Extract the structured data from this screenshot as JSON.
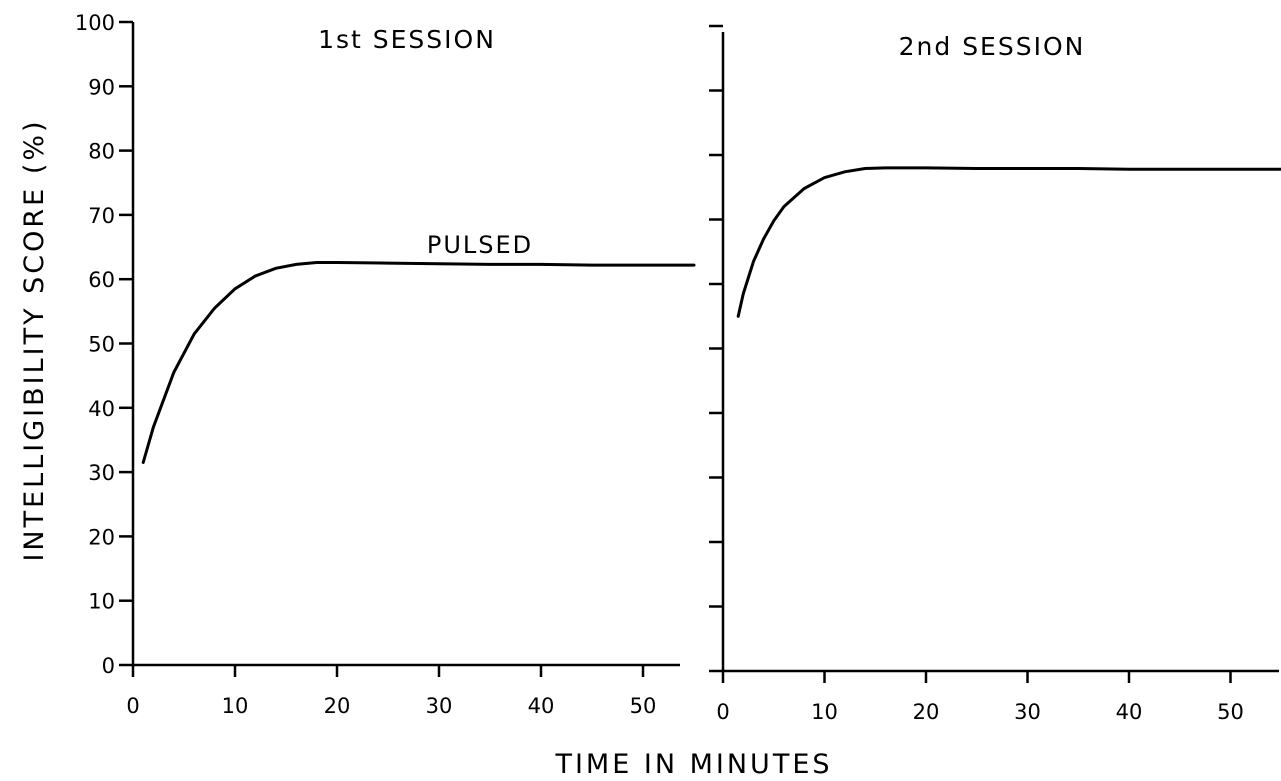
{
  "chart_data": {
    "type": "line",
    "ylabel": "INTELLIGIBILITY SCORE (%)",
    "xlabel": "TIME IN MINUTES",
    "ylim": [
      0,
      100
    ],
    "yticks": [
      "0",
      "10",
      "20",
      "30",
      "40",
      "50",
      "60",
      "70",
      "80",
      "90",
      "100"
    ],
    "xticks": [
      "0",
      "10",
      "20",
      "30",
      "40",
      "50"
    ],
    "xlim": [
      0,
      55
    ],
    "grid": false,
    "panels": [
      {
        "title": "1st SESSION",
        "series": [
          {
            "name": "PULSED",
            "x": [
              1,
              2,
              4,
              6,
              8,
              10,
              12,
              14,
              16,
              18,
              20,
              25,
              30,
              35,
              40,
              45,
              50,
              55
            ],
            "y": [
              31.5,
              37,
              45.5,
              51.5,
              55.5,
              58.5,
              60.5,
              61.7,
              62.3,
              62.6,
              62.6,
              62.5,
              62.4,
              62.3,
              62.3,
              62.2,
              62.2,
              62.2
            ]
          }
        ]
      },
      {
        "title": "2nd SESSION",
        "series": [
          {
            "x": [
              1.5,
              2,
              3,
              4,
              5,
              6,
              8,
              10,
              12,
              14,
              16,
              20,
              25,
              30,
              35,
              40,
              45,
              50,
              55
            ],
            "y": [
              55,
              58.5,
              63.5,
              67,
              69.8,
              72,
              74.8,
              76.5,
              77.4,
              77.9,
              78,
              78,
              77.9,
              77.9,
              77.9,
              77.8,
              77.8,
              77.8,
              77.8
            ]
          }
        ]
      }
    ]
  }
}
